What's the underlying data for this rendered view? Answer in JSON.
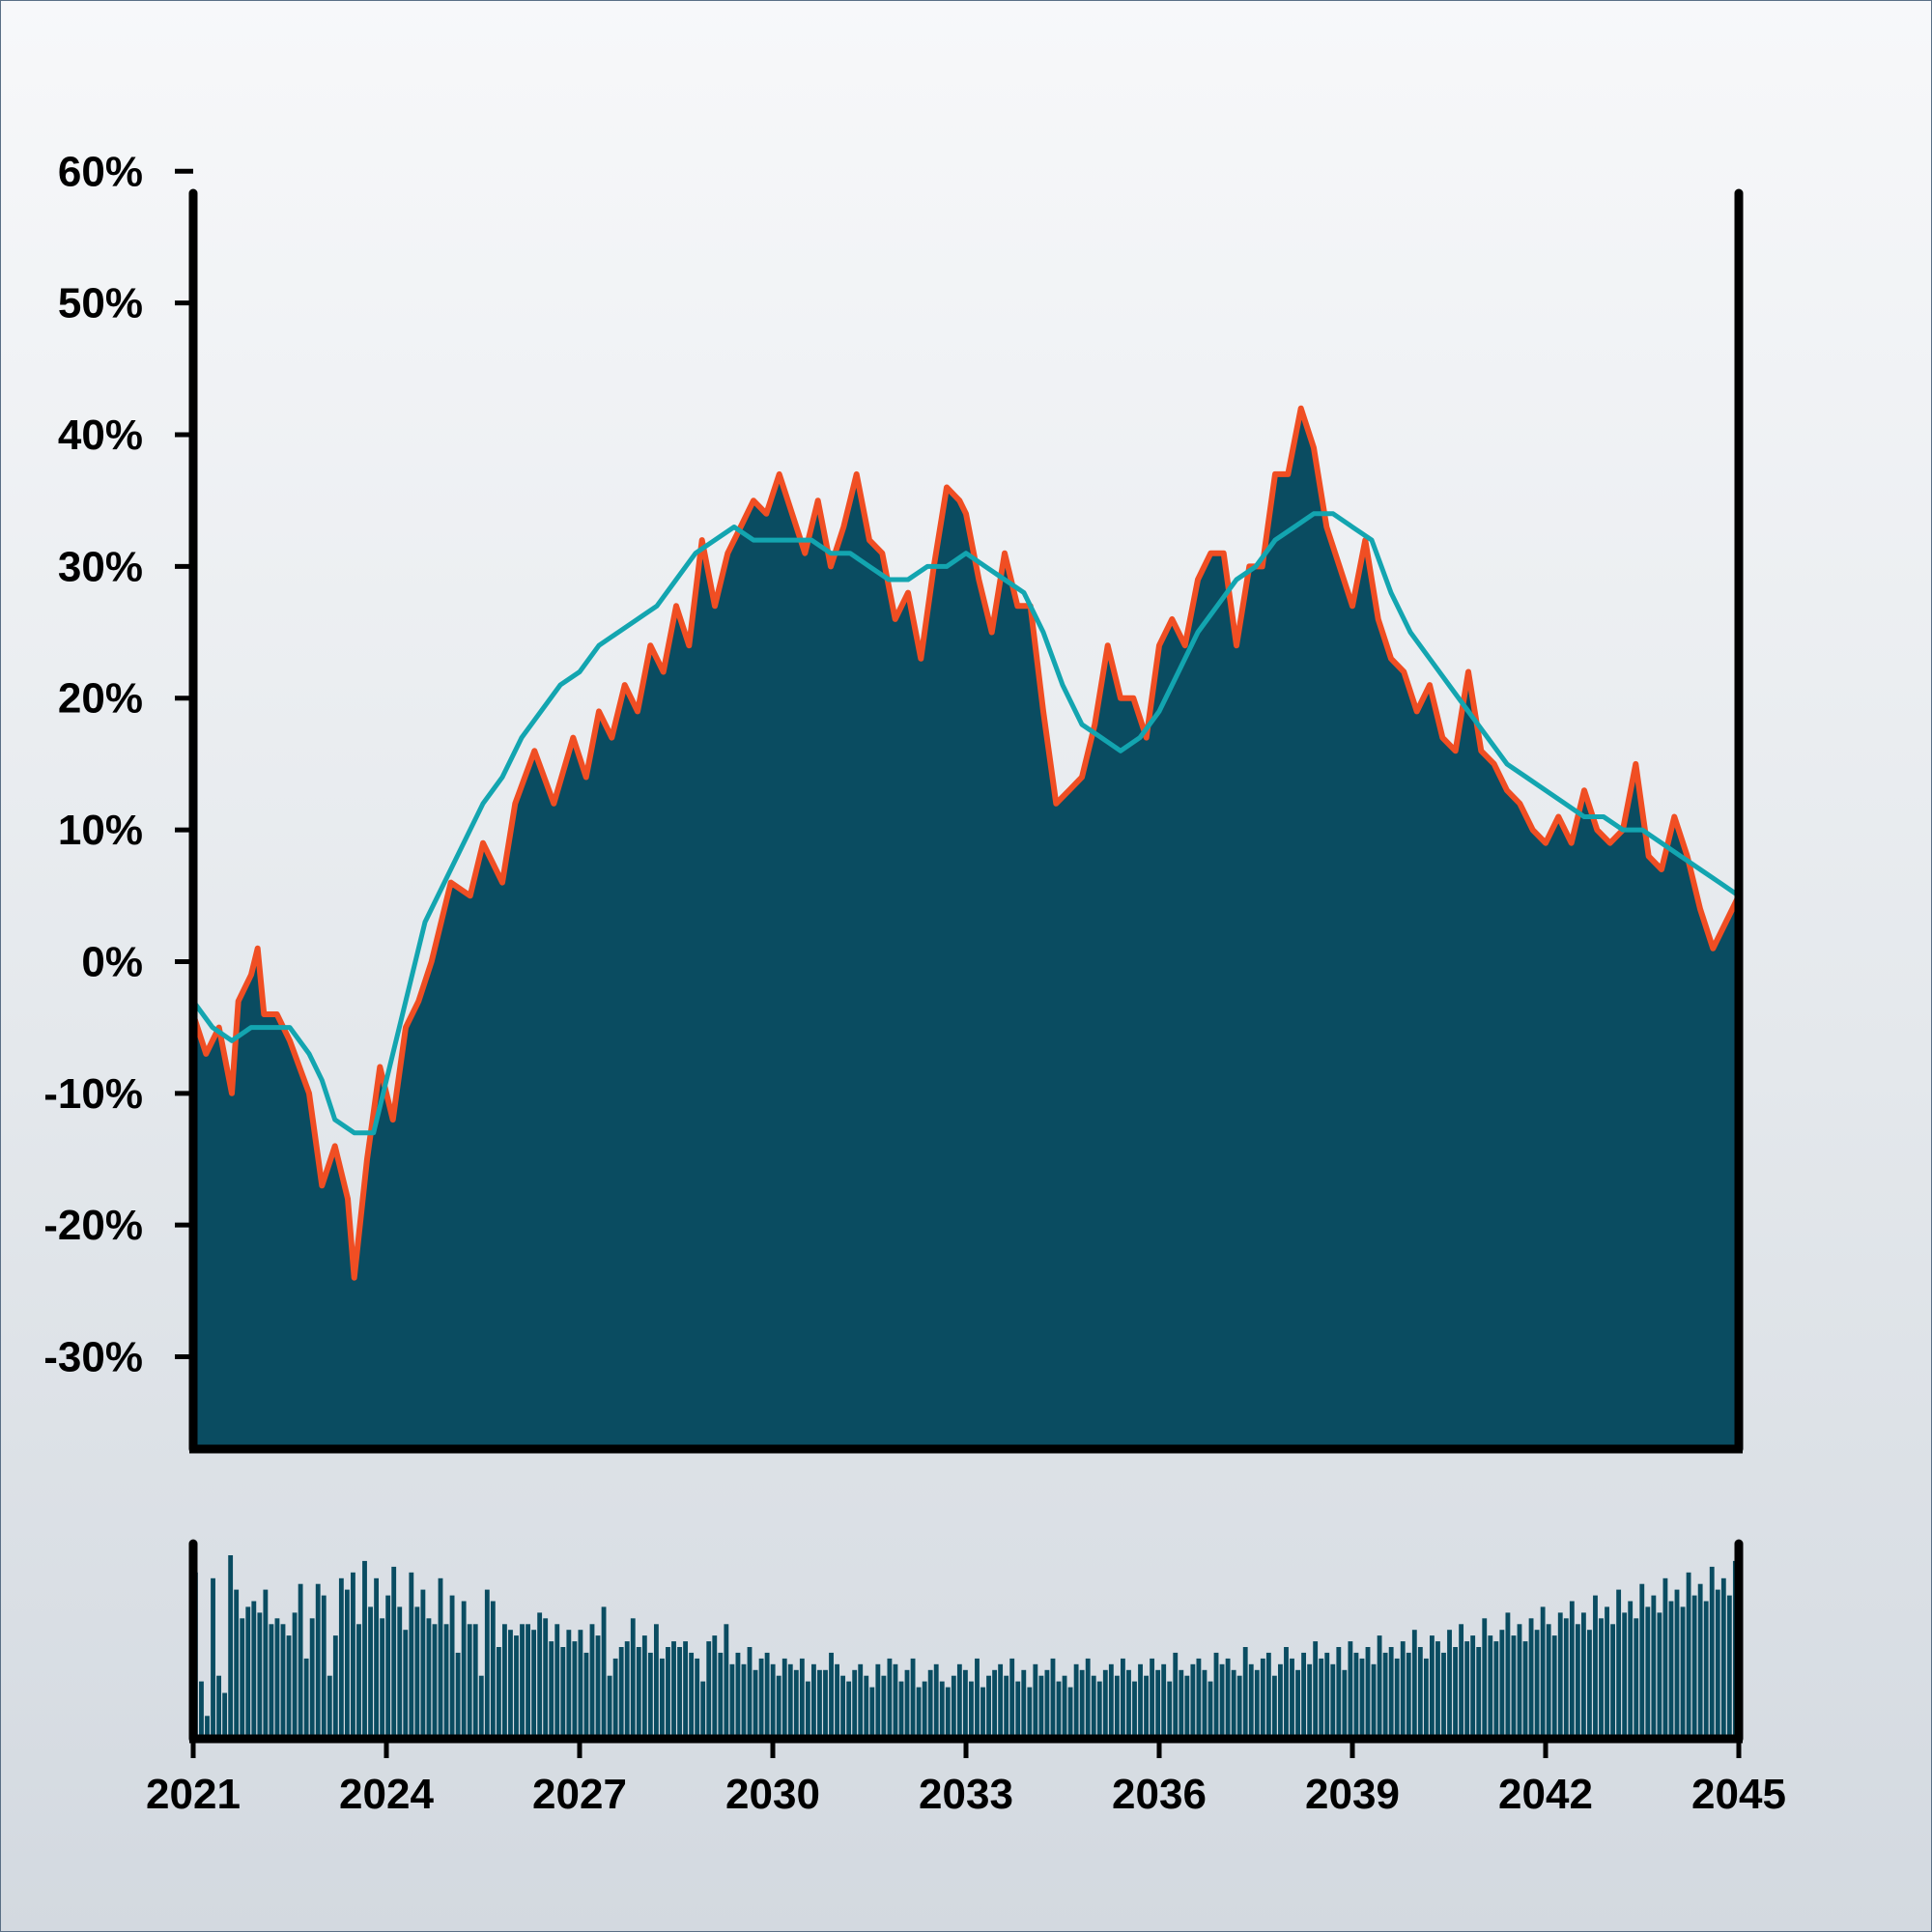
{
  "colors": {
    "area_fill": "#0a4c61",
    "area_edge": "#f04e23",
    "moving_average": "#13a5b0",
    "volume_bars": "#0a4c61",
    "axis": "#000000"
  },
  "chart_data": {
    "type": "area",
    "title": "",
    "xlabel": "",
    "ylabel": "",
    "x_ticks": [
      "2021",
      "2024",
      "2027",
      "2030",
      "2033",
      "2036",
      "2039",
      "2042",
      "2045"
    ],
    "y_ticks": [
      "60%",
      "50%",
      "40%",
      "30%",
      "20%",
      "10%",
      "0%",
      "-10%",
      "-20%",
      "-30%"
    ],
    "xlim": [
      2021,
      2045
    ],
    "ylim": [
      -37,
      62
    ],
    "grid": false,
    "series": [
      {
        "kind": "area",
        "x": [
          2021.0,
          2021.2,
          2021.4,
          2021.6,
          2021.7,
          2021.9,
          2022.0,
          2022.1,
          2022.3,
          2022.5,
          2022.8,
          2023.0,
          2023.2,
          2023.4,
          2023.5,
          2023.7,
          2023.9,
          2024.1,
          2024.3,
          2024.5,
          2024.7,
          2025.0,
          2025.3,
          2025.5,
          2025.8,
          2026.0,
          2026.3,
          2026.6,
          2026.9,
          2027.1,
          2027.3,
          2027.5,
          2027.7,
          2027.9,
          2028.1,
          2028.3,
          2028.5,
          2028.7,
          2028.9,
          2029.1,
          2029.3,
          2029.5,
          2029.7,
          2029.9,
          2030.1,
          2030.3,
          2030.5,
          2030.7,
          2030.9,
          2031.1,
          2031.3,
          2031.5,
          2031.7,
          2031.9,
          2032.1,
          2032.3,
          2032.5,
          2032.7,
          2032.9,
          2033.0,
          2033.2,
          2033.4,
          2033.6,
          2033.8,
          2034.0,
          2034.2,
          2034.4,
          2034.6,
          2034.8,
          2035.0,
          2035.2,
          2035.4,
          2035.6,
          2035.8,
          2036.0,
          2036.2,
          2036.4,
          2036.6,
          2036.8,
          2037.0,
          2037.2,
          2037.4,
          2037.6,
          2037.8,
          2038.0,
          2038.2,
          2038.4,
          2038.6,
          2038.8,
          2039.0,
          2039.2,
          2039.4,
          2039.6,
          2039.8,
          2040.0,
          2040.2,
          2040.4,
          2040.6,
          2040.8,
          2041.0,
          2041.2,
          2041.4,
          2041.6,
          2041.8,
          2042.0,
          2042.2,
          2042.4,
          2042.6,
          2042.8,
          2043.0,
          2043.2,
          2043.4,
          2043.6,
          2043.8,
          2044.0,
          2044.2,
          2044.4,
          2044.6,
          2044.8,
          2045.0
        ],
        "y": [
          -4,
          -7,
          -5,
          -10,
          -3,
          -1,
          1,
          -4,
          -4,
          -6,
          -10,
          -17,
          -14,
          -18,
          -24,
          -15,
          -8,
          -12,
          -5,
          -3,
          0,
          6,
          5,
          9,
          6,
          12,
          16,
          12,
          17,
          14,
          19,
          17,
          21,
          19,
          24,
          22,
          27,
          24,
          32,
          27,
          31,
          33,
          35,
          34,
          37,
          34,
          31,
          35,
          30,
          33,
          37,
          32,
          31,
          26,
          28,
          23,
          30,
          36,
          35,
          34,
          29,
          25,
          31,
          27,
          27,
          19,
          12,
          13,
          14,
          18,
          24,
          20,
          20,
          17,
          24,
          26,
          24,
          29,
          31,
          31,
          24,
          30,
          30,
          37,
          37,
          42,
          39,
          33,
          30,
          27,
          32,
          26,
          23,
          22,
          19,
          21,
          17,
          16,
          22,
          16,
          15,
          13,
          12,
          10,
          9,
          11,
          9,
          13,
          10,
          9,
          10,
          15,
          8,
          7,
          11,
          8,
          4,
          1,
          3,
          5
        ]
      },
      {
        "kind": "line",
        "x": [
          2021.0,
          2021.3,
          2021.6,
          2021.9,
          2022.2,
          2022.5,
          2022.8,
          2023.0,
          2023.2,
          2023.5,
          2023.8,
          2024.0,
          2024.3,
          2024.6,
          2024.9,
          2025.2,
          2025.5,
          2025.8,
          2026.1,
          2026.4,
          2026.7,
          2027.0,
          2027.3,
          2027.6,
          2027.9,
          2028.2,
          2028.5,
          2028.8,
          2029.1,
          2029.4,
          2029.7,
          2030.0,
          2030.3,
          2030.6,
          2030.9,
          2031.2,
          2031.5,
          2031.8,
          2032.1,
          2032.4,
          2032.7,
          2033.0,
          2033.3,
          2033.6,
          2033.9,
          2034.2,
          2034.5,
          2034.8,
          2035.1,
          2035.4,
          2035.7,
          2036.0,
          2036.3,
          2036.6,
          2036.9,
          2037.2,
          2037.5,
          2037.8,
          2038.1,
          2038.4,
          2038.7,
          2039.0,
          2039.3,
          2039.6,
          2039.9,
          2040.2,
          2040.5,
          2040.8,
          2041.1,
          2041.4,
          2041.7,
          2042.0,
          2042.3,
          2042.6,
          2042.9,
          2043.2,
          2043.5,
          2043.8,
          2044.1,
          2044.4,
          2044.7,
          2045.0
        ],
        "y": [
          -3,
          -5,
          -6,
          -5,
          -5,
          -5,
          -7,
          -9,
          -12,
          -13,
          -13,
          -9,
          -3,
          3,
          6,
          9,
          12,
          14,
          17,
          19,
          21,
          22,
          24,
          25,
          26,
          27,
          29,
          31,
          32,
          33,
          32,
          32,
          32,
          32,
          31,
          31,
          30,
          29,
          29,
          30,
          30,
          31,
          30,
          29,
          28,
          25,
          21,
          18,
          17,
          16,
          17,
          19,
          22,
          25,
          27,
          29,
          30,
          32,
          33,
          34,
          34,
          33,
          32,
          28,
          25,
          23,
          21,
          19,
          17,
          15,
          14,
          13,
          12,
          11,
          11,
          10,
          10,
          9,
          8,
          7,
          6,
          5
        ]
      }
    ],
    "volume": [
      29,
      10,
      4,
      28,
      11,
      8,
      32,
      26,
      21,
      23,
      24,
      22,
      26,
      20,
      21,
      20,
      18,
      22,
      27,
      14,
      21,
      27,
      25,
      11,
      18,
      28,
      26,
      29,
      20,
      31,
      23,
      28,
      21,
      25,
      30,
      23,
      19,
      29,
      23,
      26,
      21,
      20,
      28,
      20,
      25,
      15,
      24,
      20,
      20,
      11,
      26,
      24,
      16,
      20,
      19,
      18,
      20,
      20,
      19,
      22,
      21,
      17,
      20,
      16,
      19,
      17,
      19,
      15,
      20,
      18,
      23,
      11,
      14,
      16,
      17,
      21,
      16,
      18,
      15,
      20,
      14,
      16,
      17,
      16,
      17,
      15,
      14,
      10,
      17,
      18,
      15,
      20,
      13,
      15,
      13,
      16,
      12,
      14,
      15,
      13,
      11,
      14,
      13,
      12,
      14,
      10,
      13,
      12,
      12,
      15,
      13,
      11,
      10,
      12,
      13,
      11,
      9,
      13,
      11,
      14,
      13,
      10,
      12,
      14,
      9,
      10,
      12,
      13,
      10,
      9,
      11,
      13,
      12,
      10,
      14,
      9,
      11,
      12,
      13,
      11,
      14,
      10,
      12,
      9,
      13,
      11,
      12,
      14,
      10,
      11,
      9,
      13,
      12,
      14,
      11,
      10,
      12,
      13,
      11,
      14,
      12,
      10,
      13,
      11,
      14,
      12,
      13,
      10,
      15,
      12,
      11,
      13,
      14,
      12,
      10,
      15,
      13,
      14,
      12,
      11,
      16,
      13,
      12,
      14,
      15,
      11,
      13,
      16,
      14,
      12,
      15,
      13,
      17,
      14,
      15,
      13,
      16,
      12,
      17,
      15,
      14,
      16,
      13,
      18,
      15,
      16,
      14,
      17,
      15,
      19,
      16,
      14,
      18,
      17,
      15,
      19,
      16,
      20,
      17,
      18,
      16,
      21,
      18,
      17,
      19,
      22,
      18,
      20,
      17,
      21,
      19,
      23,
      20,
      18,
      22,
      21,
      24,
      20,
      22,
      19,
      25,
      21,
      23,
      20,
      26,
      22,
      24,
      21,
      27,
      23,
      25,
      22,
      28,
      24,
      26,
      23,
      29,
      25,
      27,
      24,
      30,
      26,
      28,
      25,
      31
    ]
  }
}
